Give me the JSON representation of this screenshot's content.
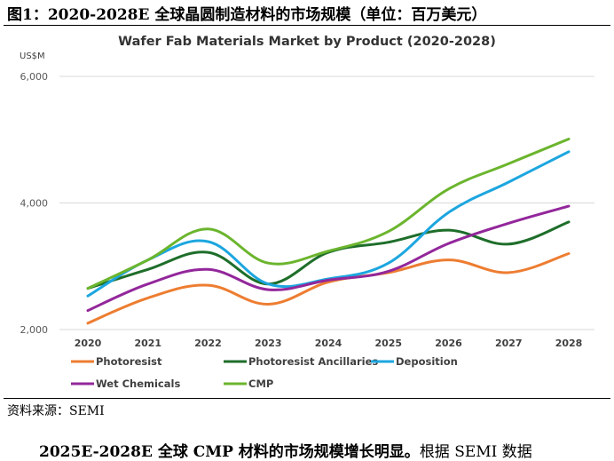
{
  "figure_title": "图1：2020-2028E 全球晶圆制造材料的市场规模（单位：百万美元）",
  "source": "资料来源：SEMI",
  "bottom_text_bold": "2025E-2028E 全球 CMP 材料的市场规模增长明显。",
  "bottom_text_normal": "根据 SEMI 数据",
  "colors": {
    "Photoresist": "#ED7D31",
    "Photoresist Ancillaries": "#1E6E2A",
    "Deposition": "#1CA6DF",
    "Wet Chemicals": "#93279B",
    "CMP": "#6BB52E"
  },
  "chart_data": {
    "type": "line",
    "title": "Wafer Fab Materials Market by Product (2020-2028)",
    "unit_label": "US$M",
    "x": [
      "2020",
      "2021",
      "2022",
      "2023",
      "2024",
      "2025",
      "2026",
      "2027",
      "2028"
    ],
    "yticks": [
      "2,000",
      "4,000",
      "6,000"
    ],
    "ylim": [
      2000,
      6000
    ],
    "grid": "horizontal",
    "legend_position": "bottom",
    "series": [
      {
        "name": "Photoresist",
        "values": [
          2100,
          2500,
          2700,
          2400,
          2750,
          2900,
          3100,
          2900,
          3200
        ]
      },
      {
        "name": "Photoresist Ancillaries",
        "values": [
          2650,
          2950,
          3220,
          2720,
          3220,
          3380,
          3570,
          3350,
          3700
        ]
      },
      {
        "name": "Deposition",
        "values": [
          2530,
          3100,
          3390,
          2720,
          2800,
          3050,
          3850,
          4330,
          4810
        ]
      },
      {
        "name": "Wet Chemicals",
        "values": [
          2300,
          2720,
          2950,
          2630,
          2780,
          2920,
          3360,
          3680,
          3950
        ]
      },
      {
        "name": "CMP",
        "values": [
          2650,
          3100,
          3590,
          3050,
          3240,
          3550,
          4220,
          4620,
          5010
        ]
      }
    ]
  }
}
